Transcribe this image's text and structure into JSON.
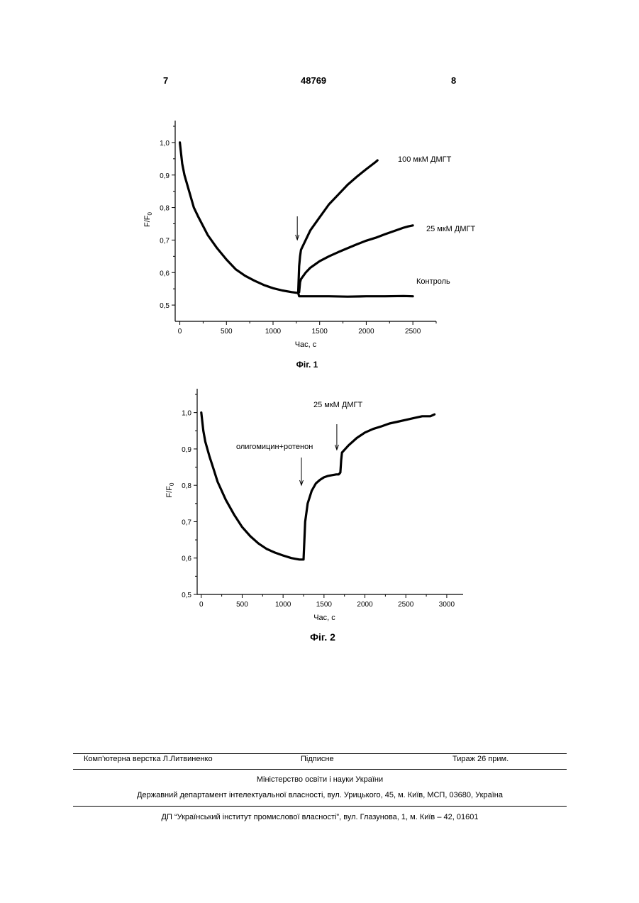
{
  "header": {
    "page_left": "7",
    "doc_number": "48769",
    "page_right": "8"
  },
  "chart_data": [
    {
      "type": "line",
      "caption": "Фіг. 1",
      "xlabel": "Час, с",
      "ylabel": "F/F",
      "ylabel_sub": "0",
      "xlim": [
        -50,
        2750
      ],
      "ylim": [
        0.45,
        1.05
      ],
      "xticks": [
        0,
        500,
        1000,
        1500,
        2000,
        2500
      ],
      "xtick_labels": [
        "0",
        "500",
        "1000",
        "1500",
        "2000",
        "2500"
      ],
      "yticks": [
        0.5,
        0.6,
        0.7,
        0.8,
        0.9,
        1.0
      ],
      "ytick_labels": [
        "0,5",
        "0,6",
        "0,7",
        "0,8",
        "0,9",
        "1,0"
      ],
      "arrow_x": 1260,
      "series": [
        {
          "name": "Контроль",
          "x": [
            0,
            25,
            50,
            100,
            150,
            200,
            300,
            400,
            500,
            600,
            700,
            800,
            900,
            1000,
            1100,
            1200,
            1270,
            1280,
            1400,
            1600,
            1800,
            2000,
            2200,
            2400,
            2500
          ],
          "y": [
            1.0,
            0.935,
            0.9,
            0.85,
            0.8,
            0.77,
            0.715,
            0.675,
            0.64,
            0.61,
            0.59,
            0.575,
            0.562,
            0.552,
            0.545,
            0.54,
            0.537,
            0.527,
            0.527,
            0.527,
            0.526,
            0.527,
            0.527,
            0.528,
            0.527
          ]
        },
        {
          "name": "25 мкМ ДМГТ",
          "x": [
            1280,
            1290,
            1300,
            1350,
            1400,
            1500,
            1600,
            1700,
            1800,
            1900,
            2000,
            2100,
            2200,
            2300,
            2400,
            2450,
            2500
          ],
          "y": [
            0.54,
            0.57,
            0.58,
            0.6,
            0.615,
            0.635,
            0.65,
            0.663,
            0.675,
            0.687,
            0.698,
            0.707,
            0.718,
            0.728,
            0.738,
            0.742,
            0.745
          ]
        },
        {
          "name": "100 мкМ ДМГТ",
          "x": [
            1270,
            1280,
            1290,
            1300,
            1350,
            1400,
            1500,
            1600,
            1700,
            1800,
            1900,
            2000,
            2100,
            2120
          ],
          "y": [
            0.54,
            0.62,
            0.65,
            0.67,
            0.7,
            0.73,
            0.77,
            0.81,
            0.84,
            0.87,
            0.895,
            0.918,
            0.94,
            0.945
          ]
        }
      ]
    },
    {
      "type": "line",
      "caption": "Фіг. 2",
      "xlabel": "Час, с",
      "ylabel": "F/F",
      "ylabel_sub": "0",
      "xlim": [
        -50,
        3200
      ],
      "ylim": [
        0.5,
        1.05
      ],
      "xticks": [
        0,
        500,
        1000,
        1500,
        2000,
        2500,
        3000
      ],
      "xtick_labels": [
        "0",
        "500",
        "1000",
        "1500",
        "2000",
        "2500",
        "3000"
      ],
      "yticks": [
        0.5,
        0.6,
        0.7,
        0.8,
        0.9,
        1.0
      ],
      "ytick_labels": [
        "0,5",
        "0,6",
        "0,7",
        "0,8",
        "0,9",
        "1,0"
      ],
      "annotations": [
        {
          "text": "олигомицин+ротенон",
          "arrow_x": 1250
        },
        {
          "text": "25 мкМ ДМГТ",
          "arrow_x": 1700
        }
      ],
      "series": [
        {
          "name": "",
          "x": [
            0,
            25,
            50,
            100,
            150,
            200,
            300,
            400,
            500,
            600,
            700,
            800,
            900,
            1000,
            1100,
            1150,
            1200,
            1250,
            1270,
            1300,
            1350,
            1400,
            1450,
            1500,
            1550,
            1600,
            1650,
            1680,
            1700,
            1710,
            1720,
            1800,
            1900,
            2000,
            2100,
            2200,
            2300,
            2400,
            2500,
            2600,
            2700,
            2800,
            2850
          ],
          "y": [
            1.0,
            0.95,
            0.92,
            0.88,
            0.845,
            0.81,
            0.76,
            0.72,
            0.685,
            0.66,
            0.64,
            0.625,
            0.615,
            0.607,
            0.6,
            0.598,
            0.596,
            0.596,
            0.7,
            0.75,
            0.785,
            0.805,
            0.815,
            0.822,
            0.826,
            0.828,
            0.83,
            0.83,
            0.835,
            0.87,
            0.89,
            0.91,
            0.93,
            0.945,
            0.955,
            0.962,
            0.97,
            0.975,
            0.98,
            0.985,
            0.99,
            0.99,
            0.995
          ]
        }
      ]
    }
  ],
  "footer": {
    "layout_credit": "Комп’ютерна верстка Л.Литвиненко",
    "signed": "Підписне",
    "circulation": "Тираж 26 прим.",
    "ministry": "Міністерство освіти і науки України",
    "department": "Державний департамент інтелектуальної власності, вул. Урицького, 45, м. Київ, МСП, 03680, Україна",
    "institute": "ДП “Український інститут промислової власності”, вул. Глазунова, 1, м. Київ – 42, 01601"
  }
}
